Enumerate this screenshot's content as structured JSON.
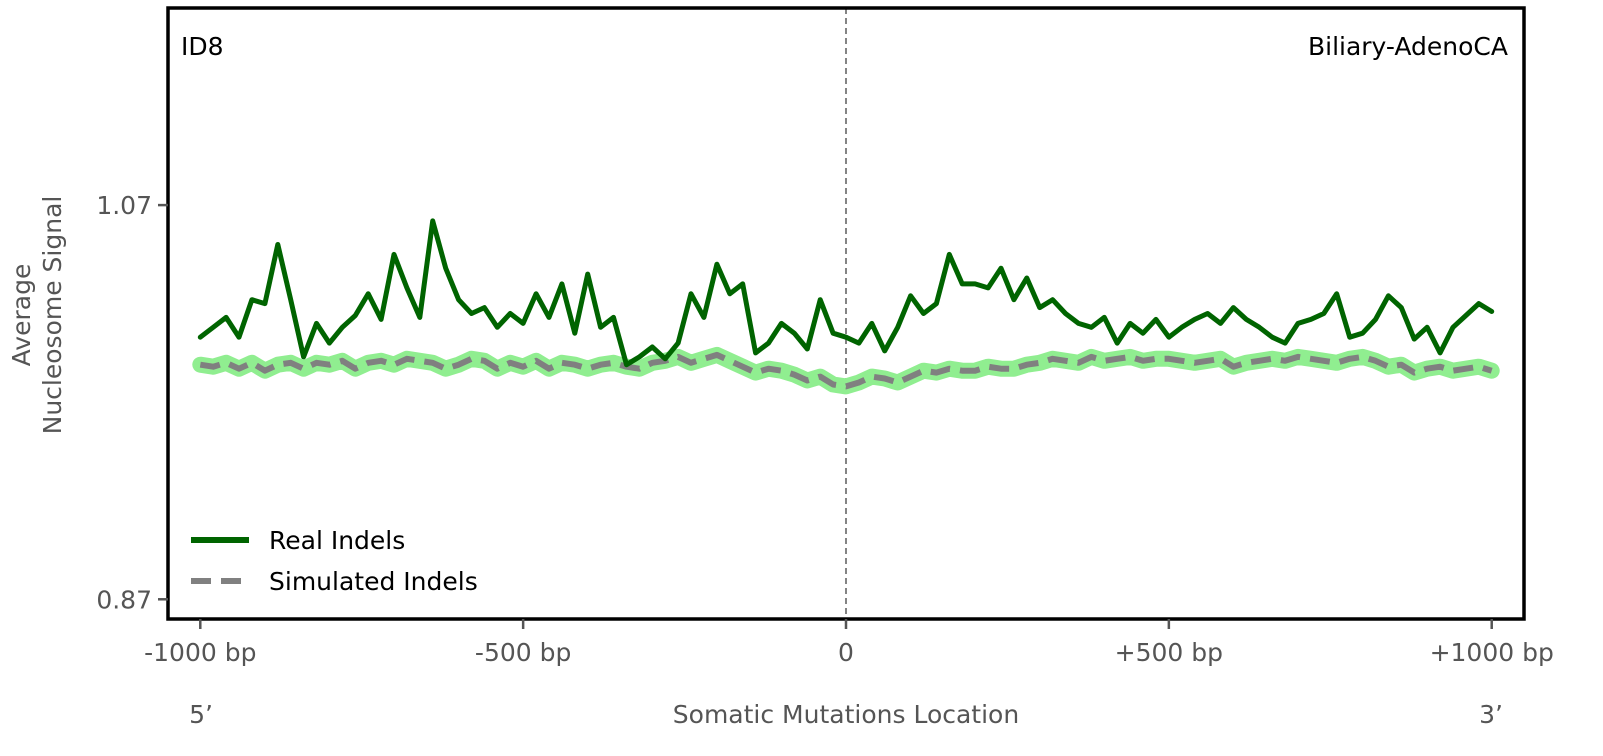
{
  "chart_data": {
    "type": "line",
    "panel_left_label": "ID8",
    "panel_right_label": "Biliary-AdenoCA",
    "ylabel_line1": "Average",
    "ylabel_line2": "Nucleosome Signal",
    "xlabel": "Somatic Mutations Location",
    "x_end_left_label": "5’",
    "x_end_right_label": "3’",
    "xlim": [
      -1050,
      1050
    ],
    "ylim": [
      0.86,
      1.17
    ],
    "x_ticks": [
      {
        "value": -1000,
        "label": "-1000 bp"
      },
      {
        "value": -500,
        "label": "-500 bp"
      },
      {
        "value": 0,
        "label": "0"
      },
      {
        "value": 500,
        "label": "+500 bp"
      },
      {
        "value": 1000,
        "label": "+1000 bp"
      }
    ],
    "y_ticks": [
      {
        "value": 1.07,
        "label": "1.07"
      },
      {
        "value": 0.87,
        "label": "0.87"
      }
    ],
    "center_line_x": 0,
    "legend": {
      "placement": "lower-left"
    },
    "series": [
      {
        "name": "Real Indels",
        "color": "#006400",
        "style": "solid",
        "x": [
          -1000,
          -980,
          -960,
          -940,
          -920,
          -900,
          -880,
          -860,
          -840,
          -820,
          -800,
          -780,
          -760,
          -740,
          -720,
          -700,
          -680,
          -660,
          -640,
          -620,
          -600,
          -580,
          -560,
          -540,
          -520,
          -500,
          -480,
          -460,
          -440,
          -420,
          -400,
          -380,
          -360,
          -340,
          -320,
          -300,
          -280,
          -260,
          -240,
          -220,
          -200,
          -180,
          -160,
          -140,
          -120,
          -100,
          -80,
          -60,
          -40,
          -20,
          0,
          20,
          40,
          60,
          80,
          100,
          120,
          140,
          160,
          180,
          200,
          220,
          240,
          260,
          280,
          300,
          320,
          340,
          360,
          380,
          400,
          420,
          440,
          460,
          480,
          500,
          520,
          540,
          560,
          580,
          600,
          620,
          640,
          660,
          680,
          700,
          720,
          740,
          760,
          780,
          800,
          820,
          840,
          860,
          880,
          900,
          920,
          940,
          960,
          980,
          1000
        ],
        "values": [
          1.003,
          1.008,
          1.013,
          1.003,
          1.022,
          1.02,
          1.05,
          1.022,
          0.993,
          1.01,
          1.0,
          1.008,
          1.014,
          1.025,
          1.012,
          1.045,
          1.028,
          1.013,
          1.062,
          1.038,
          1.022,
          1.015,
          1.018,
          1.008,
          1.015,
          1.01,
          1.025,
          1.013,
          1.03,
          1.005,
          1.035,
          1.008,
          1.013,
          0.989,
          0.993,
          0.998,
          0.992,
          1.0,
          1.025,
          1.013,
          1.04,
          1.025,
          1.03,
          0.995,
          1.0,
          1.01,
          1.005,
          0.997,
          1.022,
          1.005,
          1.003,
          1.0,
          1.01,
          0.996,
          1.008,
          1.024,
          1.015,
          1.02,
          1.045,
          1.03,
          1.03,
          1.028,
          1.038,
          1.022,
          1.033,
          1.018,
          1.022,
          1.015,
          1.01,
          1.008,
          1.013,
          1.0,
          1.01,
          1.005,
          1.012,
          1.003,
          1.008,
          1.012,
          1.015,
          1.01,
          1.018,
          1.012,
          1.008,
          1.003,
          1.0,
          1.01,
          1.012,
          1.015,
          1.025,
          1.003,
          1.005,
          1.012,
          1.024,
          1.018,
          1.002,
          1.008,
          0.995,
          1.008,
          1.014,
          1.02,
          1.016
        ]
      },
      {
        "name": "Simulated Indels",
        "color": "#808080",
        "style": "dashed",
        "band_color": "#90EE90",
        "x": [
          -1000,
          -980,
          -960,
          -940,
          -920,
          -900,
          -880,
          -860,
          -840,
          -820,
          -800,
          -780,
          -760,
          -740,
          -720,
          -700,
          -680,
          -660,
          -640,
          -620,
          -600,
          -580,
          -560,
          -540,
          -520,
          -500,
          -480,
          -460,
          -440,
          -420,
          -400,
          -380,
          -360,
          -340,
          -320,
          -300,
          -280,
          -260,
          -240,
          -220,
          -200,
          -180,
          -160,
          -140,
          -120,
          -100,
          -80,
          -60,
          -40,
          -20,
          0,
          20,
          40,
          60,
          80,
          100,
          120,
          140,
          160,
          180,
          200,
          220,
          240,
          260,
          280,
          300,
          320,
          340,
          360,
          380,
          400,
          420,
          440,
          460,
          480,
          500,
          520,
          540,
          560,
          580,
          600,
          620,
          640,
          660,
          680,
          700,
          720,
          740,
          760,
          780,
          800,
          820,
          840,
          860,
          880,
          900,
          920,
          940,
          960,
          980,
          1000
        ],
        "values": [
          0.989,
          0.988,
          0.99,
          0.987,
          0.99,
          0.986,
          0.989,
          0.99,
          0.987,
          0.99,
          0.989,
          0.991,
          0.987,
          0.99,
          0.991,
          0.989,
          0.992,
          0.991,
          0.99,
          0.987,
          0.989,
          0.992,
          0.991,
          0.987,
          0.99,
          0.988,
          0.991,
          0.987,
          0.99,
          0.989,
          0.987,
          0.989,
          0.99,
          0.988,
          0.987,
          0.99,
          0.991,
          0.993,
          0.99,
          0.992,
          0.994,
          0.991,
          0.988,
          0.985,
          0.987,
          0.986,
          0.984,
          0.981,
          0.983,
          0.979,
          0.978,
          0.98,
          0.983,
          0.982,
          0.98,
          0.983,
          0.986,
          0.985,
          0.987,
          0.986,
          0.986,
          0.988,
          0.987,
          0.987,
          0.989,
          0.99,
          0.992,
          0.991,
          0.99,
          0.993,
          0.991,
          0.992,
          0.993,
          0.991,
          0.992,
          0.992,
          0.991,
          0.99,
          0.991,
          0.992,
          0.988,
          0.99,
          0.991,
          0.992,
          0.991,
          0.993,
          0.992,
          0.991,
          0.99,
          0.992,
          0.993,
          0.991,
          0.988,
          0.989,
          0.985,
          0.987,
          0.988,
          0.986,
          0.987,
          0.988,
          0.986
        ]
      }
    ]
  }
}
